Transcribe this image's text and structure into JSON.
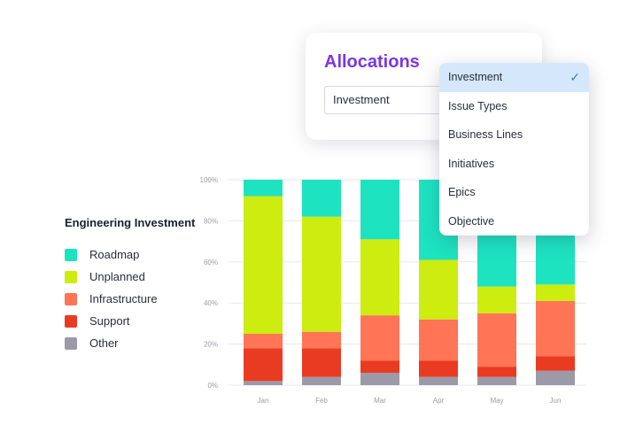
{
  "card": {
    "title": "Allocations",
    "select_value": "Investment"
  },
  "dropdown": {
    "options": [
      "Investment",
      "Issue Types",
      "Business Lines",
      "Initiatives",
      "Epics",
      "Objective"
    ],
    "selected_index": 0,
    "check_icon": "checkmark-icon"
  },
  "legend": {
    "title": "Engineering Investment",
    "items": [
      {
        "label": "Roadmap",
        "color": "#1de3c1"
      },
      {
        "label": "Unplanned",
        "color": "#cdec0f"
      },
      {
        "label": "Infrastructure",
        "color": "#ff7556"
      },
      {
        "label": "Support",
        "color": "#e93b22"
      },
      {
        "label": "Other",
        "color": "#9c9aa8"
      }
    ]
  },
  "chart_data": {
    "type": "bar",
    "stacked": true,
    "categories": [
      "Jan",
      "Feb",
      "Mar",
      "Apr",
      "May",
      "Jun"
    ],
    "y_ticks": [
      "0%",
      "20%",
      "40%",
      "60%",
      "80%",
      "100%"
    ],
    "ylim": [
      0,
      100
    ],
    "grid": true,
    "series": [
      {
        "name": "Other",
        "color": "#9c9aa8",
        "values": [
          2,
          4,
          6,
          4,
          4,
          7
        ]
      },
      {
        "name": "Support",
        "color": "#e93b22",
        "values": [
          16,
          14,
          6,
          8,
          5,
          7
        ]
      },
      {
        "name": "Infrastructure",
        "color": "#ff7556",
        "values": [
          7,
          8,
          22,
          20,
          26,
          27
        ]
      },
      {
        "name": "Unplanned",
        "color": "#cdec0f",
        "values": [
          67,
          56,
          37,
          29,
          13,
          8
        ]
      },
      {
        "name": "Roadmap",
        "color": "#1de3c1",
        "values": [
          8,
          18,
          29,
          39,
          52,
          51
        ]
      }
    ]
  }
}
